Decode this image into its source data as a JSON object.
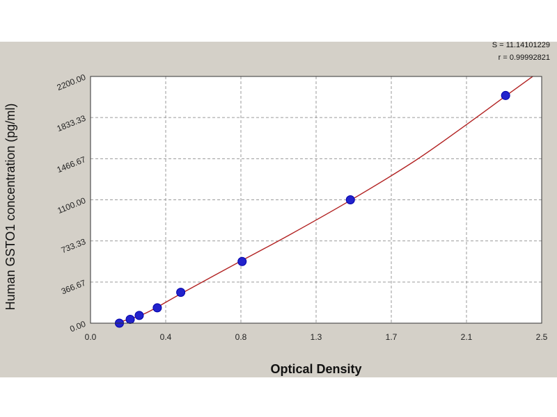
{
  "chart_data": {
    "type": "scatter",
    "xlabel": "Optical Density",
    "ylabel": "Human GSTO1 concentration (pg/ml)",
    "xlim": [
      0.0,
      2.5
    ],
    "ylim": [
      0,
      2200
    ],
    "x_ticks": [
      "0.0",
      "0.4",
      "0.8",
      "1.3",
      "1.7",
      "2.1",
      "2.5"
    ],
    "y_ticks": [
      "0.00",
      "366.67",
      "733.33",
      "1100.00",
      "1466.67",
      "1833.33",
      "2200.00"
    ],
    "grid": true,
    "annotations": [
      "S = 11.14101229",
      "r = 0.99992821"
    ],
    "series": [
      {
        "points": [
          {
            "x": 0.16,
            "y": 0
          },
          {
            "x": 0.22,
            "y": 34
          },
          {
            "x": 0.27,
            "y": 69
          },
          {
            "x": 0.37,
            "y": 137
          },
          {
            "x": 0.5,
            "y": 275
          },
          {
            "x": 0.84,
            "y": 550
          },
          {
            "x": 1.44,
            "y": 1100
          },
          {
            "x": 2.3,
            "y": 2030
          }
        ]
      }
    ],
    "fit_curve": [
      {
        "x": 0.14,
        "y": 0
      },
      {
        "x": 0.3,
        "y": 85
      },
      {
        "x": 0.5,
        "y": 262
      },
      {
        "x": 0.8,
        "y": 525
      },
      {
        "x": 1.1,
        "y": 785
      },
      {
        "x": 1.44,
        "y": 1095
      },
      {
        "x": 1.8,
        "y": 1450
      },
      {
        "x": 2.1,
        "y": 1790
      },
      {
        "x": 2.3,
        "y": 2025
      },
      {
        "x": 2.45,
        "y": 2200
      }
    ],
    "colors": {
      "points": "#2222cc",
      "point_edge": "#0000aa",
      "curve": "#b22222",
      "grid": "#9a9a9a",
      "plot_bg": "#ffffff",
      "panel_bg": "#d4d0c8"
    }
  }
}
